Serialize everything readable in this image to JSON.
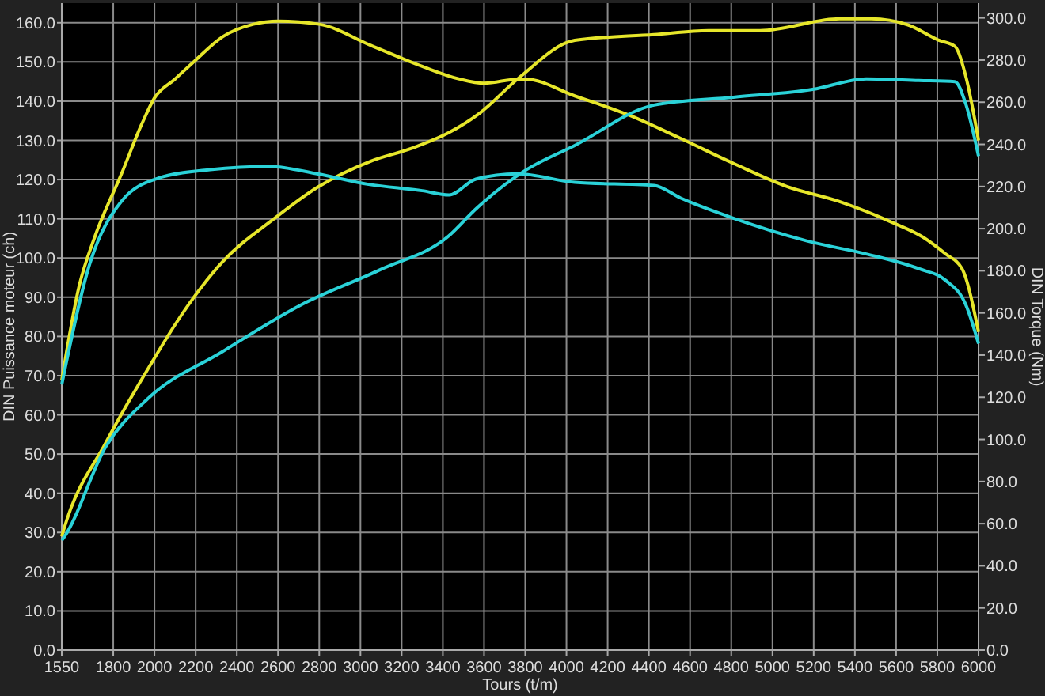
{
  "chart_data": {
    "type": "line",
    "xlabel": "Tours (t/m)",
    "ylabel": "DIN Puissance moteur (ch)",
    "y2label": "DIN Torque (Nm)",
    "xlim": [
      1550,
      6000
    ],
    "xticks": [
      1550,
      1800,
      2000,
      2200,
      2400,
      2600,
      2800,
      3000,
      3200,
      3400,
      3600,
      3800,
      4000,
      4200,
      4400,
      4600,
      4800,
      5000,
      5200,
      5400,
      5600,
      5800,
      6000
    ],
    "ylim": [
      0,
      165
    ],
    "yticks": [
      {
        "value": 0,
        "label": "0.0"
      },
      {
        "value": 10,
        "label": "10.0"
      },
      {
        "value": 20,
        "label": "20.0"
      },
      {
        "value": 30,
        "label": "30.0"
      },
      {
        "value": 40,
        "label": "40.0"
      },
      {
        "value": 50,
        "label": "50.0"
      },
      {
        "value": 60,
        "label": "60.0"
      },
      {
        "value": 70,
        "label": "70.0"
      },
      {
        "value": 80,
        "label": "80.0"
      },
      {
        "value": 90,
        "label": "90.0"
      },
      {
        "value": 100,
        "label": "100.0"
      },
      {
        "value": 110,
        "label": "110.0"
      },
      {
        "value": 120,
        "label": "120.0"
      },
      {
        "value": 130,
        "label": "130.0"
      },
      {
        "value": 140,
        "label": "140.0"
      },
      {
        "value": 150,
        "label": "150.0"
      },
      {
        "value": 160,
        "label": "160.0"
      }
    ],
    "y2lim": [
      0,
      307
    ],
    "y2ticks": [
      {
        "value": 0,
        "label": "0.0"
      },
      {
        "value": 20,
        "label": "20.0"
      },
      {
        "value": 40,
        "label": "40.0"
      },
      {
        "value": 60,
        "label": "60.0"
      },
      {
        "value": 80,
        "label": "80.0"
      },
      {
        "value": 100,
        "label": "100.0"
      },
      {
        "value": 120,
        "label": "120.0"
      },
      {
        "value": 140,
        "label": "140.0"
      },
      {
        "value": 160,
        "label": "160.0"
      },
      {
        "value": 180,
        "label": "180.0"
      },
      {
        "value": 200,
        "label": "200.0"
      },
      {
        "value": 220,
        "label": "220.0"
      },
      {
        "value": 240,
        "label": "240.0"
      },
      {
        "value": 260,
        "label": "260.0"
      },
      {
        "value": 280,
        "label": "280.0"
      },
      {
        "value": 300,
        "label": "300.0"
      }
    ],
    "grid": true,
    "marker": "none",
    "line_style": "solid",
    "series": [
      {
        "color": "#e6e62a",
        "axis": "y2",
        "x": [
          1550,
          1635,
          1710,
          1840,
          1940,
          2000,
          2100,
          2200,
          2330,
          2480,
          2600,
          2800,
          3050,
          3300,
          3480,
          3600,
          3770,
          3800,
          4040,
          4300,
          4550,
          4810,
          5070,
          5320,
          5580,
          5730,
          5840,
          5920,
          6000
        ],
        "values": [
          128,
          173,
          196,
          226,
          250,
          262,
          271,
          280,
          291,
          297,
          298.5,
          297,
          287,
          277,
          271,
          269,
          271,
          271,
          263,
          254,
          243,
          231,
          220,
          213,
          203,
          196,
          188,
          181,
          151
        ]
      },
      {
        "color": "#e6e62a",
        "x": [
          1550,
          1560,
          1765,
          2000,
          2100,
          2330,
          2580,
          2790,
          3050,
          3250,
          3430,
          3580,
          3770,
          4040,
          4425,
          4690,
          4940,
          5325,
          5480,
          5655,
          5810,
          5885,
          5940,
          6000
        ],
        "values": [
          29,
          30.8,
          53,
          74.5,
          83,
          99,
          110,
          118,
          124.7,
          128,
          132,
          137,
          146,
          155.5,
          157,
          158,
          158,
          161,
          161,
          159.5,
          155.5,
          154,
          146,
          130
        ]
      },
      {
        "color": "#2ad2d8",
        "axis": "y2",
        "x": [
          1550,
          1685,
          1840,
          2020,
          2270,
          2560,
          2790,
          3040,
          3300,
          3430,
          3560,
          3760,
          4040,
          4425,
          4555,
          4810,
          5195,
          5455,
          5710,
          5840,
          5940,
          6000
        ],
        "values": [
          126,
          183,
          213,
          224,
          228,
          229.5,
          226,
          221,
          218,
          216,
          223.5,
          226,
          222,
          220.5,
          214.5,
          205,
          193.5,
          188,
          181,
          175.5,
          163.5,
          145.5
        ]
      },
      {
        "color": "#2ad2d8",
        "x": [
          1550,
          1560,
          1765,
          1965,
          2326,
          2710,
          3095,
          3430,
          3560,
          3790,
          4040,
          4425,
          4810,
          5195,
          5455,
          5710,
          5885,
          5940,
          6000
        ],
        "values": [
          28,
          28.7,
          52,
          64,
          76,
          88,
          97,
          105.7,
          112.5,
          122,
          128.7,
          139,
          141,
          143,
          145.7,
          145.3,
          145,
          139,
          126
        ]
      }
    ]
  }
}
